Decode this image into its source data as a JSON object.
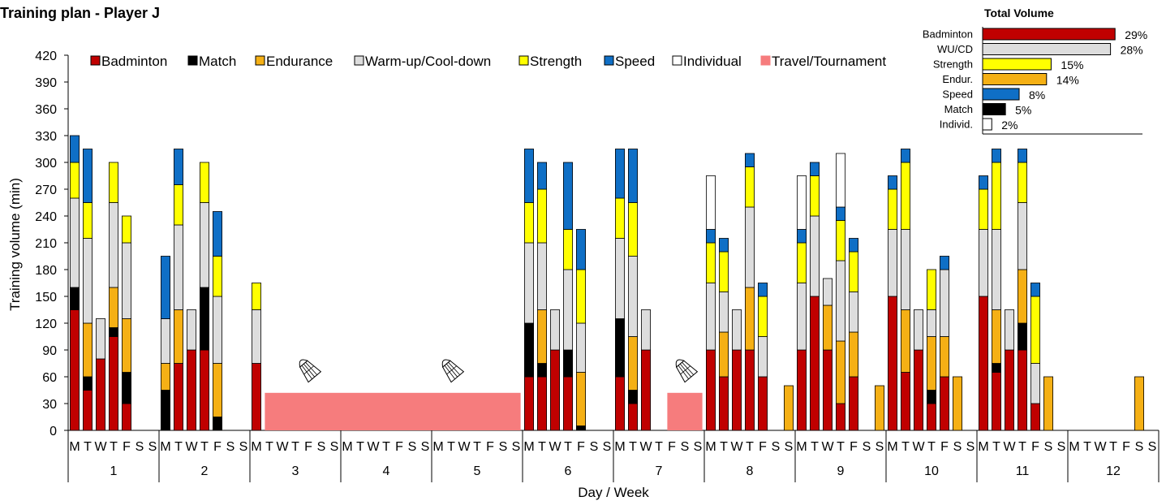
{
  "title": "Training plan - Player J",
  "chart_data": [
    {
      "type": "bar",
      "stacked": true,
      "xlabel": "Day / Week",
      "ylabel": "Training volume (min)",
      "ylim": [
        0,
        420
      ],
      "yticks": [
        0,
        30,
        60,
        90,
        120,
        150,
        180,
        210,
        240,
        270,
        300,
        330,
        360,
        390,
        420
      ],
      "grid": false,
      "legend_position": "top",
      "day_labels": [
        "M",
        "T",
        "W",
        "T",
        "F",
        "S",
        "S"
      ],
      "weeks": [
        "1",
        "2",
        "3",
        "4",
        "5",
        "6",
        "7",
        "8",
        "9",
        "10",
        "11",
        "12"
      ],
      "series": [
        {
          "name": "Badminton",
          "color": "#c00000",
          "border": "#000000"
        },
        {
          "name": "Match",
          "color": "#000000",
          "border": "#000000"
        },
        {
          "name": "Endurance",
          "color": "#f5b015",
          "border": "#000000"
        },
        {
          "name": "Warm-up/Cool-down",
          "color": "#dddddd",
          "border": "#000000"
        },
        {
          "name": "Strength",
          "color": "#ffff00",
          "border": "#000000"
        },
        {
          "name": "Speed",
          "color": "#0f6fc6",
          "border": "#000000"
        },
        {
          "name": "Individual",
          "color": "#ffffff",
          "border": "#000000"
        },
        {
          "name": "Travel/Tournament",
          "color": "#f67c7d",
          "border": "#f67c7d"
        }
      ],
      "values": [
        {
          "week": 1,
          "day": 0,
          "segments": {
            "Badminton": 135,
            "Match": 25,
            "Warm-up/Cool-down": 100,
            "Strength": 40,
            "Speed": 30
          }
        },
        {
          "week": 1,
          "day": 1,
          "segments": {
            "Badminton": 45,
            "Match": 15,
            "Endurance": 60,
            "Warm-up/Cool-down": 95,
            "Strength": 40,
            "Speed": 60
          }
        },
        {
          "week": 1,
          "day": 2,
          "segments": {
            "Badminton": 80,
            "Warm-up/Cool-down": 45
          }
        },
        {
          "week": 1,
          "day": 3,
          "segments": {
            "Badminton": 105,
            "Match": 10,
            "Endurance": 45,
            "Warm-up/Cool-down": 95,
            "Strength": 45
          }
        },
        {
          "week": 1,
          "day": 4,
          "segments": {
            "Badminton": 30,
            "Match": 35,
            "Endurance": 60,
            "Warm-up/Cool-down": 85,
            "Strength": 30
          }
        },
        {
          "week": 2,
          "day": 0,
          "segments": {
            "Match": 45,
            "Endurance": 30,
            "Warm-up/Cool-down": 50,
            "Speed": 70
          }
        },
        {
          "week": 2,
          "day": 1,
          "segments": {
            "Badminton": 75,
            "Endurance": 60,
            "Warm-up/Cool-down": 95,
            "Strength": 45,
            "Speed": 40
          }
        },
        {
          "week": 2,
          "day": 2,
          "segments": {
            "Badminton": 90,
            "Warm-up/Cool-down": 45
          }
        },
        {
          "week": 2,
          "day": 3,
          "segments": {
            "Badminton": 90,
            "Match": 70,
            "Warm-up/Cool-down": 95,
            "Strength": 45
          }
        },
        {
          "week": 2,
          "day": 4,
          "segments": {
            "Match": 15,
            "Endurance": 60,
            "Warm-up/Cool-down": 75,
            "Strength": 45,
            "Speed": 50
          }
        },
        {
          "week": 3,
          "day": 0,
          "segments": {
            "Badminton": 75,
            "Warm-up/Cool-down": 60,
            "Strength": 30
          }
        },
        {
          "week": 6,
          "day": 0,
          "segments": {
            "Badminton": 60,
            "Match": 60,
            "Warm-up/Cool-down": 90,
            "Strength": 45,
            "Speed": 60
          }
        },
        {
          "week": 6,
          "day": 1,
          "segments": {
            "Badminton": 60,
            "Match": 15,
            "Endurance": 60,
            "Warm-up/Cool-down": 75,
            "Strength": 60,
            "Speed": 30
          }
        },
        {
          "week": 6,
          "day": 2,
          "segments": {
            "Badminton": 90,
            "Warm-up/Cool-down": 45
          }
        },
        {
          "week": 6,
          "day": 3,
          "segments": {
            "Badminton": 60,
            "Match": 30,
            "Warm-up/Cool-down": 90,
            "Strength": 45,
            "Speed": 75
          }
        },
        {
          "week": 6,
          "day": 4,
          "segments": {
            "Match": 5,
            "Endurance": 60,
            "Warm-up/Cool-down": 55,
            "Strength": 60,
            "Speed": 45
          }
        },
        {
          "week": 7,
          "day": 0,
          "segments": {
            "Badminton": 60,
            "Match": 65,
            "Warm-up/Cool-down": 90,
            "Strength": 45,
            "Speed": 55
          }
        },
        {
          "week": 7,
          "day": 1,
          "segments": {
            "Badminton": 30,
            "Match": 15,
            "Endurance": 60,
            "Warm-up/Cool-down": 90,
            "Strength": 60,
            "Speed": 60
          }
        },
        {
          "week": 7,
          "day": 2,
          "segments": {
            "Badminton": 90,
            "Warm-up/Cool-down": 45
          }
        },
        {
          "week": 8,
          "day": 0,
          "segments": {
            "Badminton": 90,
            "Warm-up/Cool-down": 75,
            "Strength": 45,
            "Speed": 15,
            "Individual": 60
          }
        },
        {
          "week": 8,
          "day": 1,
          "segments": {
            "Badminton": 60,
            "Endurance": 50,
            "Warm-up/Cool-down": 45,
            "Strength": 45,
            "Speed": 15
          }
        },
        {
          "week": 8,
          "day": 2,
          "segments": {
            "Badminton": 90,
            "Warm-up/Cool-down": 45
          }
        },
        {
          "week": 8,
          "day": 3,
          "segments": {
            "Badminton": 90,
            "Endurance": 70,
            "Warm-up/Cool-down": 90,
            "Strength": 45,
            "Speed": 15
          }
        },
        {
          "week": 8,
          "day": 4,
          "segments": {
            "Badminton": 60,
            "Warm-up/Cool-down": 45,
            "Strength": 45,
            "Speed": 15
          }
        },
        {
          "week": 8,
          "day": 6,
          "segments": {
            "Endurance": 50
          }
        },
        {
          "week": 9,
          "day": 0,
          "segments": {
            "Badminton": 90,
            "Warm-up/Cool-down": 75,
            "Strength": 45,
            "Speed": 15,
            "Individual": 60
          }
        },
        {
          "week": 9,
          "day": 1,
          "segments": {
            "Badminton": 150,
            "Warm-up/Cool-down": 90,
            "Strength": 45,
            "Speed": 15
          }
        },
        {
          "week": 9,
          "day": 2,
          "segments": {
            "Badminton": 90,
            "Endurance": 50,
            "Warm-up/Cool-down": 30
          }
        },
        {
          "week": 9,
          "day": 3,
          "segments": {
            "Badminton": 30,
            "Endurance": 70,
            "Warm-up/Cool-down": 90,
            "Strength": 45,
            "Speed": 15,
            "Individual": 60
          }
        },
        {
          "week": 9,
          "day": 4,
          "segments": {
            "Badminton": 60,
            "Endurance": 50,
            "Warm-up/Cool-down": 45,
            "Strength": 45,
            "Speed": 15
          }
        },
        {
          "week": 9,
          "day": 6,
          "segments": {
            "Endurance": 50
          }
        },
        {
          "week": 10,
          "day": 0,
          "segments": {
            "Badminton": 150,
            "Warm-up/Cool-down": 75,
            "Strength": 45,
            "Speed": 15
          }
        },
        {
          "week": 10,
          "day": 1,
          "segments": {
            "Badminton": 65,
            "Endurance": 70,
            "Warm-up/Cool-down": 90,
            "Strength": 75,
            "Speed": 15
          }
        },
        {
          "week": 10,
          "day": 2,
          "segments": {
            "Badminton": 90,
            "Warm-up/Cool-down": 45
          }
        },
        {
          "week": 10,
          "day": 3,
          "segments": {
            "Badminton": 30,
            "Match": 15,
            "Endurance": 60,
            "Warm-up/Cool-down": 30,
            "Strength": 45
          }
        },
        {
          "week": 10,
          "day": 4,
          "segments": {
            "Badminton": 60,
            "Endurance": 45,
            "Warm-up/Cool-down": 75,
            "Speed": 15
          }
        },
        {
          "week": 10,
          "day": 5,
          "segments": {
            "Endurance": 60
          }
        },
        {
          "week": 11,
          "day": 0,
          "segments": {
            "Badminton": 150,
            "Warm-up/Cool-down": 75,
            "Strength": 45,
            "Speed": 15
          }
        },
        {
          "week": 11,
          "day": 1,
          "segments": {
            "Badminton": 65,
            "Match": 10,
            "Endurance": 60,
            "Warm-up/Cool-down": 90,
            "Strength": 75,
            "Speed": 15
          }
        },
        {
          "week": 11,
          "day": 2,
          "segments": {
            "Badminton": 90,
            "Warm-up/Cool-down": 45
          }
        },
        {
          "week": 11,
          "day": 3,
          "segments": {
            "Badminton": 90,
            "Match": 30,
            "Endurance": 60,
            "Warm-up/Cool-down": 75,
            "Strength": 45,
            "Speed": 15
          }
        },
        {
          "week": 11,
          "day": 4,
          "segments": {
            "Badminton": 30,
            "Warm-up/Cool-down": 45,
            "Strength": 75,
            "Speed": 15
          }
        },
        {
          "week": 11,
          "day": 5,
          "segments": {
            "Endurance": 60
          }
        },
        {
          "week": 12,
          "day": 5,
          "segments": {
            "Endurance": 60
          }
        }
      ],
      "travel_blocks": [
        {
          "start": {
            "week": 3,
            "day": 1
          },
          "end": {
            "week": 5,
            "day": 6
          },
          "value": 42
        },
        {
          "start": {
            "week": 7,
            "day": 4
          },
          "end": {
            "week": 7,
            "day": 6
          },
          "value": 42
        }
      ],
      "annotations": [
        {
          "icon": "shuttlecock-icon",
          "week": 3,
          "day": 4
        },
        {
          "icon": "shuttlecock-icon",
          "week": 5,
          "day": 1
        },
        {
          "icon": "shuttlecock-icon",
          "week": 7,
          "day": 5
        }
      ]
    },
    {
      "type": "bar",
      "orientation": "horizontal",
      "title": "Total Volume",
      "xlim": [
        0,
        35
      ],
      "categories": [
        "Badminton",
        "WU/CD",
        "Strength",
        "Endur.",
        "Speed",
        "Match",
        "Individ."
      ],
      "values": [
        29,
        28,
        15,
        14,
        8,
        5,
        2
      ],
      "labels": [
        "29%",
        "28%",
        "15%",
        "14%",
        "8%",
        "5%",
        "2%"
      ],
      "colors": [
        "#c00000",
        "#dddddd",
        "#ffff00",
        "#f5b015",
        "#0f6fc6",
        "#000000",
        "#ffffff"
      ]
    }
  ]
}
